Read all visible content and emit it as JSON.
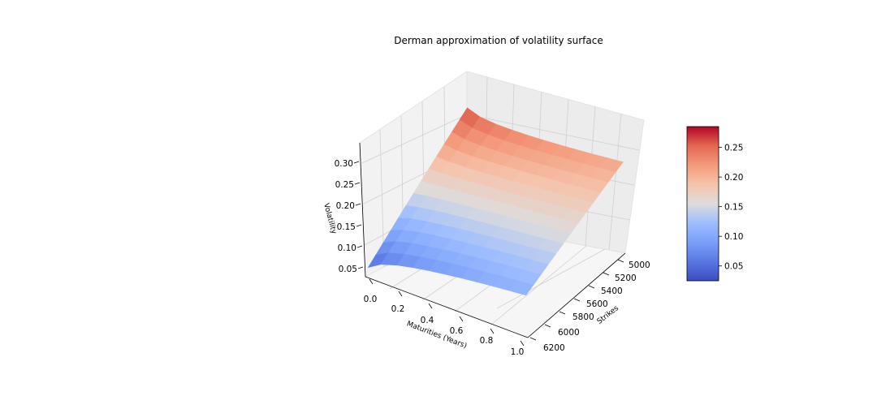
{
  "chart_data": {
    "type": "surface",
    "title": "Derman approximation of volatility surface",
    "xlabel": "Maturities (Years)",
    "ylabel": "Strikes",
    "zlabel": "Volatility",
    "colormap": "coolwarm",
    "x_ticks": [
      "0.0",
      "0.2",
      "0.4",
      "0.6",
      "0.8",
      "1.0"
    ],
    "y_ticks": [
      "5000",
      "5200",
      "5400",
      "5600",
      "5800",
      "6000",
      "6200"
    ],
    "z_ticks": [
      "0.05",
      "0.10",
      "0.15",
      "0.20",
      "0.25",
      "0.30"
    ],
    "colorbar_ticks": [
      "0.05",
      "0.10",
      "0.15",
      "0.20",
      "0.25"
    ],
    "colorbar_range": [
      0.025,
      0.285
    ],
    "maturities": [
      0.02,
      0.1,
      0.2,
      0.3,
      0.4,
      0.5,
      0.6,
      0.7,
      0.8,
      0.9,
      1.0
    ],
    "strikes": [
      4900,
      5000,
      5100,
      5200,
      5300,
      5400,
      5500,
      5600,
      5700,
      5800,
      5900,
      6000,
      6100,
      6200
    ],
    "volatility_corners": {
      "min_maturity_min_strike": 0.285,
      "max_maturity_min_strike": 0.21,
      "min_maturity_max_strike": 0.025,
      "max_maturity_max_strike": 0.11
    }
  }
}
